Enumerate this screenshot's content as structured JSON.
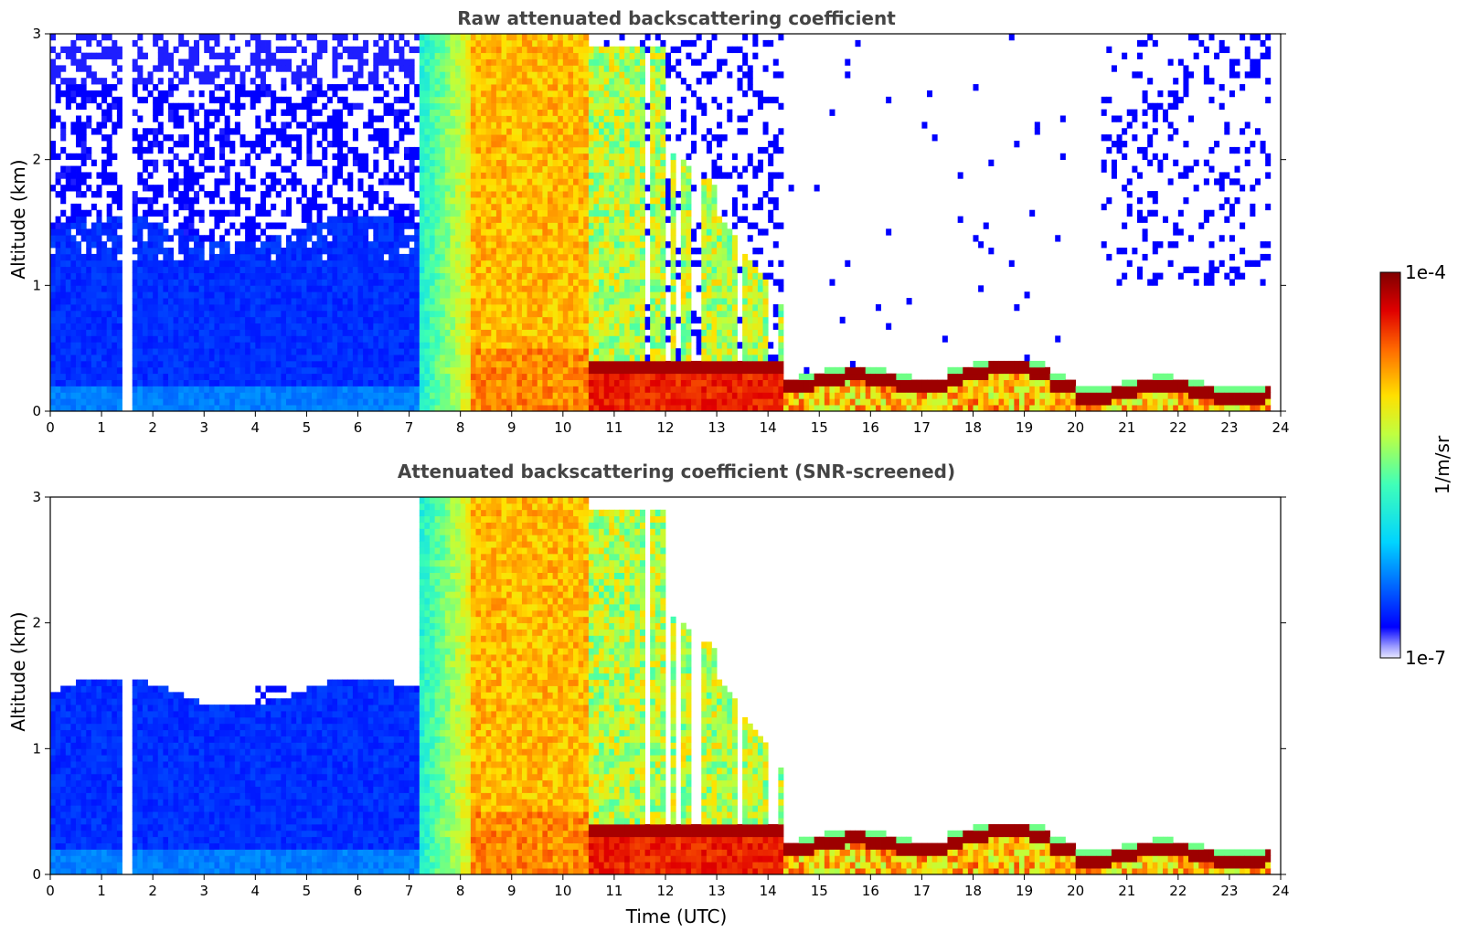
{
  "chart_data": [
    {
      "type": "heatmap",
      "title": "Raw attenuated backscattering coefficient",
      "xlabel": "",
      "ylabel": "Altitude (km)",
      "xlim": [
        0,
        24
      ],
      "ylim": [
        0,
        3
      ],
      "x_ticks": [
        "0",
        "1",
        "2",
        "3",
        "4",
        "5",
        "6",
        "7",
        "8",
        "9",
        "10",
        "11",
        "12",
        "13",
        "14",
        "15",
        "16",
        "17",
        "18",
        "19",
        "20",
        "21",
        "22",
        "23",
        "24"
      ],
      "y_ticks": [
        "0",
        "1",
        "2",
        "3"
      ],
      "grid": false,
      "screened": false
    },
    {
      "type": "heatmap",
      "title": "Attenuated backscattering coefficient (SNR-screened)",
      "xlabel": "Time (UTC)",
      "ylabel": "Altitude (km)",
      "xlim": [
        0,
        24
      ],
      "ylim": [
        0,
        3
      ],
      "x_ticks": [
        "0",
        "1",
        "2",
        "3",
        "4",
        "5",
        "6",
        "7",
        "8",
        "9",
        "10",
        "11",
        "12",
        "13",
        "14",
        "15",
        "16",
        "17",
        "18",
        "19",
        "20",
        "21",
        "22",
        "23",
        "24"
      ],
      "y_ticks": [
        "0",
        "1",
        "2",
        "3"
      ],
      "grid": false,
      "screened": true
    }
  ],
  "colorbar": {
    "min_label": "1e-7",
    "max_label": "1e-4",
    "unit_label": "1/m/sr",
    "scale": "log",
    "colormap": "jet"
  },
  "colors": {
    "title": "#444444",
    "low": "#0000ff",
    "high": "#800000"
  }
}
